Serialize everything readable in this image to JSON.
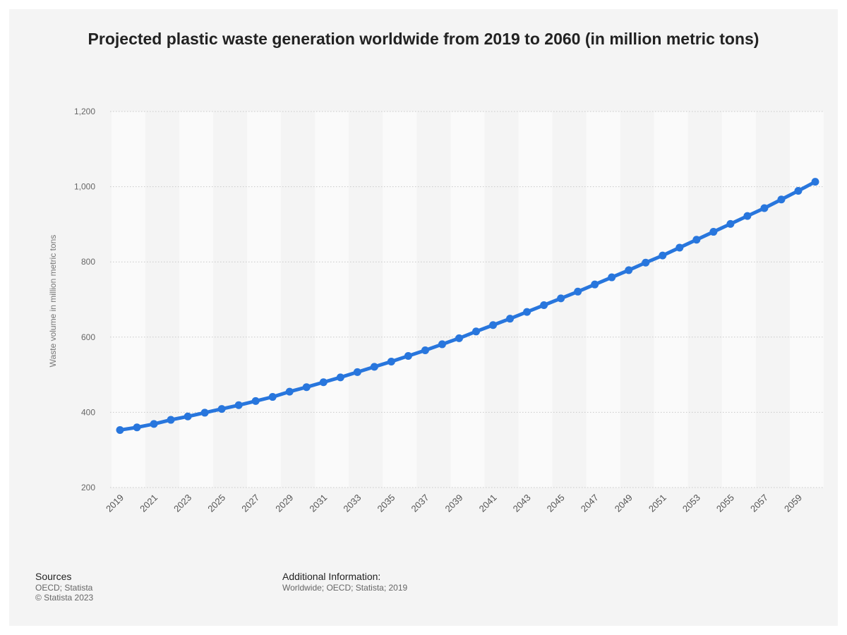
{
  "chart_data": {
    "type": "line",
    "title": "Projected plastic waste generation worldwide from 2019 to 2060 (in million metric tons)",
    "xlabel": "",
    "ylabel": "Waste volume in million metric tons",
    "ylim": [
      200,
      1200
    ],
    "yticks": [
      "200",
      "400",
      "600",
      "800",
      "1,000",
      "1,200"
    ],
    "ytick_values": [
      200,
      400,
      600,
      800,
      1000,
      1200
    ],
    "xticks": [
      "2019",
      "2021",
      "2023",
      "2025",
      "2027",
      "2029",
      "2031",
      "2033",
      "2035",
      "2037",
      "2039",
      "2041",
      "2043",
      "2045",
      "2047",
      "2049",
      "2051",
      "2053",
      "2055",
      "2057",
      "2059"
    ],
    "x": [
      2019,
      2020,
      2021,
      2022,
      2023,
      2024,
      2025,
      2026,
      2027,
      2028,
      2029,
      2030,
      2031,
      2032,
      2033,
      2034,
      2035,
      2036,
      2037,
      2038,
      2039,
      2040,
      2041,
      2042,
      2043,
      2044,
      2045,
      2046,
      2047,
      2048,
      2049,
      2050,
      2051,
      2052,
      2053,
      2054,
      2055,
      2056,
      2057,
      2058,
      2059,
      2060
    ],
    "series": [
      {
        "values": [
          353,
          360,
          369,
          380,
          389,
          399,
          409,
          419,
          430,
          441,
          455,
          467,
          480,
          493,
          507,
          521,
          535,
          550,
          565,
          581,
          597,
          615,
          632,
          649,
          667,
          685,
          703,
          721,
          740,
          759,
          778,
          798,
          817,
          838,
          859,
          880,
          901,
          922,
          943,
          966,
          989,
          1013
        ],
        "color": "#2876dd"
      }
    ],
    "grid": true,
    "legend": "none"
  },
  "footer": {
    "sources_heading": "Sources",
    "sources_line1": "OECD; Statista",
    "sources_line2": "© Statista 2023",
    "additional_heading": "Additional Information:",
    "additional_line1": "Worldwide; OECD; Statista; 2019"
  }
}
